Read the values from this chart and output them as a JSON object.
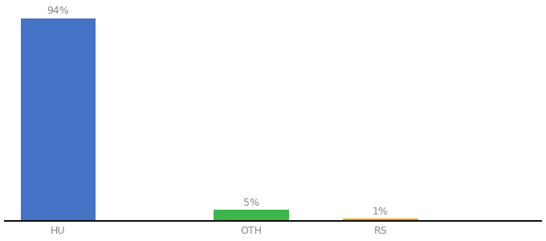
{
  "categories": [
    "HU",
    "OTH",
    "RS"
  ],
  "values": [
    94,
    5,
    1
  ],
  "bar_colors": [
    "#4472c4",
    "#3cb54a",
    "#f0a500"
  ],
  "label_texts": [
    "94%",
    "5%",
    "1%"
  ],
  "background_color": "#ffffff",
  "ylim": [
    0,
    100
  ],
  "xlim": [
    -0.5,
    4.5
  ],
  "x_positions": [
    0,
    1.8,
    3.0
  ],
  "bar_width": 0.7,
  "label_fontsize": 9,
  "tick_fontsize": 9,
  "tick_color": "#888888",
  "label_color": "#888888"
}
